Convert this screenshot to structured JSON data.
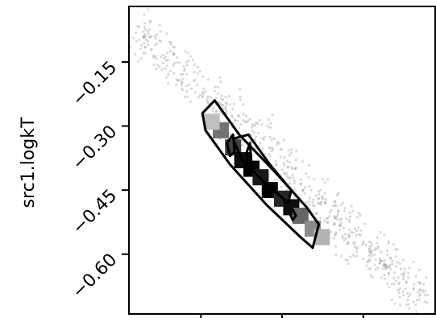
{
  "chart_data": {
    "type": "scatter",
    "ylabel": "src1.logkT",
    "y_ticks": [
      -0.15,
      -0.3,
      -0.45,
      -0.6
    ],
    "y_tick_labels": [
      "−0.15",
      "−0.30",
      "−0.45",
      "−0.60"
    ],
    "ylim": [
      -0.74,
      -0.02
    ],
    "x_tick_count": 3,
    "grid": false,
    "series": [
      {
        "kind": "samples",
        "trend": {
          "x_start": 0.03,
          "y_start": -0.07,
          "x_end": 0.97,
          "y_end": -0.72
        }
      },
      {
        "kind": "2d-histogram",
        "cells_fraction_coords": [
          [
            0.3,
            -0.31,
            0.55
          ],
          [
            0.34,
            -0.35,
            0.75
          ],
          [
            0.37,
            -0.38,
            0.95
          ],
          [
            0.4,
            -0.4,
            1.0
          ],
          [
            0.43,
            -0.42,
            0.9
          ],
          [
            0.46,
            -0.45,
            1.0
          ],
          [
            0.5,
            -0.47,
            0.85
          ],
          [
            0.53,
            -0.49,
            0.95
          ],
          [
            0.56,
            -0.51,
            0.6
          ],
          [
            0.6,
            -0.54,
            0.45
          ],
          [
            0.27,
            -0.29,
            0.25
          ],
          [
            0.63,
            -0.56,
            0.3
          ]
        ]
      },
      {
        "kind": "contours",
        "levels": 3
      }
    ]
  }
}
